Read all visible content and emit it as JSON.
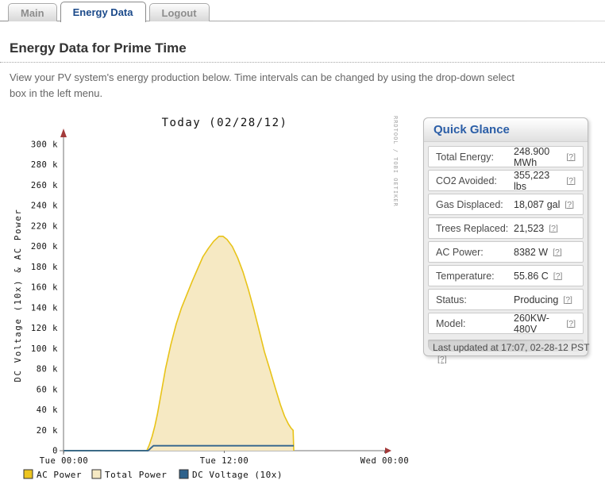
{
  "tabs": [
    {
      "label": "Main",
      "active": false
    },
    {
      "label": "Energy Data",
      "active": true
    },
    {
      "label": "Logout",
      "active": false
    }
  ],
  "page": {
    "title": "Energy Data for Prime Time",
    "description": "View your PV system's energy production below. Time intervals can be changed by using the drop-down select box in the left menu."
  },
  "quick_glance": {
    "title": "Quick Glance",
    "help_label": "[?]",
    "rows": [
      {
        "label": "Total Energy:",
        "value": "248.900 MWh"
      },
      {
        "label": "CO2 Avoided:",
        "value": "355,223 lbs"
      },
      {
        "label": "Gas Displaced:",
        "value": "18,087 gal"
      },
      {
        "label": "Trees Replaced:",
        "value": "21,523"
      },
      {
        "label": "AC Power:",
        "value": "8382 W"
      },
      {
        "label": "Temperature:",
        "value": "55.86 C"
      },
      {
        "label": "Status:",
        "value": "Producing"
      },
      {
        "label": "Model:",
        "value": "260KW-480V"
      }
    ],
    "last_updated": "Last updated at 17:07, 02-28-12 PST"
  },
  "chart_data": {
    "type": "area",
    "title": "Today (02/28/12)",
    "ylabel": "DC Voltage (10x) & AC Power",
    "watermark": "RRDTOOL / TOBI OETIKER",
    "ylim": [
      0,
      300000
    ],
    "y_tick_step_k": 20,
    "y_tick_labels": [
      "0",
      "20 k",
      "40 k",
      "60 k",
      "80 k",
      "100 k",
      "120 k",
      "140 k",
      "160 k",
      "180 k",
      "200 k",
      "220 k",
      "240 k",
      "260 k",
      "280 k",
      "300 k"
    ],
    "x_tick_labels": [
      "Tue 00:00",
      "Tue 12:00",
      "Wed 00:00"
    ],
    "x_tick_hours": [
      0,
      12,
      24
    ],
    "xlim_hours": [
      0,
      24
    ],
    "grid": false,
    "legend_position": "bottom",
    "colors": {
      "total_power_fill": "#f6e9c3",
      "ac_power_line": "#e8c318",
      "dc_voltage_line": "#2d618b",
      "axis": "#737373",
      "arrow": "#a33a3a",
      "watermark": "#a3a3a3"
    },
    "series": [
      {
        "name": "Total Power",
        "type": "area",
        "hours": [
          0,
          6.2,
          6.4,
          6.6,
          6.8,
          7.0,
          7.3,
          7.6,
          8.0,
          8.4,
          8.8,
          9.2,
          9.6,
          10.0,
          10.4,
          10.8,
          11.2,
          11.6,
          11.9,
          12.2,
          12.6,
          13.0,
          13.4,
          13.8,
          14.2,
          14.6,
          15.0,
          15.4,
          15.8,
          16.2,
          16.5,
          16.8,
          17.0,
          17.15,
          17.2
        ],
        "values_k": [
          0,
          0,
          6,
          14,
          24,
          36,
          58,
          80,
          104,
          124,
          140,
          153,
          166,
          178,
          190,
          198,
          205,
          210,
          210,
          207,
          200,
          189,
          175,
          158,
          139,
          118,
          97,
          80,
          62,
          45,
          34,
          26,
          22,
          20,
          0
        ]
      },
      {
        "name": "AC Power",
        "type": "line",
        "hours": [
          0,
          6.2,
          6.4,
          6.6,
          6.8,
          7.0,
          7.3,
          7.6,
          8.0,
          8.4,
          8.8,
          9.2,
          9.6,
          10.0,
          10.4,
          10.8,
          11.2,
          11.6,
          11.9,
          12.2,
          12.6,
          13.0,
          13.4,
          13.8,
          14.2,
          14.6,
          15.0,
          15.4,
          15.8,
          16.2,
          16.5,
          16.8,
          17.0,
          17.15,
          17.2
        ],
        "values_k": [
          0,
          0,
          6,
          14,
          24,
          36,
          58,
          80,
          104,
          124,
          140,
          153,
          166,
          178,
          190,
          198,
          205,
          210,
          210,
          207,
          200,
          189,
          175,
          158,
          139,
          118,
          97,
          80,
          62,
          45,
          34,
          26,
          22,
          20,
          0
        ]
      },
      {
        "name": "DC Voltage (10x)",
        "type": "line",
        "hours": [
          0,
          6.3,
          6.5,
          6.7,
          17.2
        ],
        "values_k": [
          0,
          0,
          2.5,
          4.8,
          4.8
        ]
      }
    ],
    "legend": [
      {
        "label": "AC Power",
        "color": "#edc51f"
      },
      {
        "label": "Total Power",
        "color": "#f6e9c3"
      },
      {
        "label": "DC Voltage (10x)",
        "color": "#2d618b"
      }
    ]
  }
}
